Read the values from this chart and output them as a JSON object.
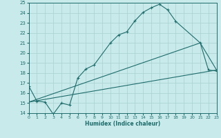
{
  "xlabel": "Humidex (Indice chaleur)",
  "bg_color": "#c8eaea",
  "line_color": "#1e6b6b",
  "xlim": [
    0,
    23
  ],
  "ylim": [
    14,
    25
  ],
  "xticks": [
    0,
    1,
    2,
    3,
    4,
    5,
    6,
    7,
    8,
    9,
    10,
    11,
    12,
    13,
    14,
    15,
    16,
    17,
    18,
    19,
    20,
    21,
    22,
    23
  ],
  "yticks": [
    14,
    15,
    16,
    17,
    18,
    19,
    20,
    21,
    22,
    23,
    24,
    25
  ],
  "grid_color": "#a8d0d0",
  "line1_x": [
    0,
    1,
    2,
    3,
    4,
    5,
    6,
    7,
    8,
    10,
    11,
    12,
    13,
    14,
    15,
    16,
    17,
    18,
    21,
    22,
    23
  ],
  "line1_y": [
    16.7,
    15.2,
    15.1,
    13.9,
    15.0,
    14.8,
    17.5,
    18.4,
    18.8,
    21.0,
    21.8,
    22.1,
    23.2,
    24.05,
    24.5,
    24.85,
    24.3,
    23.15,
    21.0,
    18.3,
    18.2
  ],
  "line2_x": [
    0,
    23
  ],
  "line2_y": [
    15.1,
    18.3
  ],
  "line3_x": [
    0,
    21,
    23
  ],
  "line3_y": [
    15.1,
    21.0,
    18.3
  ]
}
